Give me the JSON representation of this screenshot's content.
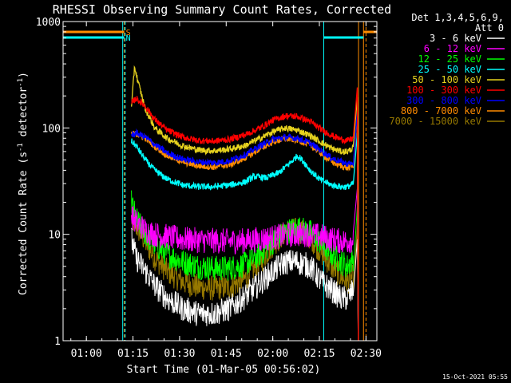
{
  "chart_data": {
    "type": "line",
    "title": "RHESSI Observing Summary Count Rates, Corrected",
    "xlabel": "Start Time (01-Mar-05 00:56:02)",
    "ylabel": "Corrected Count Rate (s⁻¹ detector⁻¹)",
    "ylabel_main": "Corrected Count Rate (s",
    "ylabel_sup1": "-1",
    "ylabel_mid": " detector",
    "ylabel_sup2": "-1",
    "ylabel_end": ")",
    "yscale": "log",
    "ylim": [
      1,
      1000
    ],
    "xlim_minutes": [
      -3.5,
      97.5
    ],
    "x_ticks": [
      {
        "label": "01:00",
        "m": 4
      },
      {
        "label": "01:15",
        "m": 19
      },
      {
        "label": "01:30",
        "m": 34
      },
      {
        "label": "01:45",
        "m": 49
      },
      {
        "label": "02:00",
        "m": 64
      },
      {
        "label": "02:15",
        "m": 79
      },
      {
        "label": "02:30",
        "m": 94
      }
    ],
    "y_ticks": [
      {
        "label": "1",
        "v": 1
      },
      {
        "label": "10",
        "v": 10
      },
      {
        "label": "100",
        "v": 100
      },
      {
        "label": "1000",
        "v": 1000
      }
    ],
    "legend_header": [
      "Det 1,3,4,5,6,9,",
      "Att 0"
    ],
    "series": [
      {
        "name": "3 - 6 keV",
        "color": "#ffffff",
        "x": [
          18.5,
          20,
          23,
          26,
          30,
          35,
          40,
          45,
          50,
          55,
          60,
          64,
          68,
          72,
          76,
          80,
          83,
          86,
          88,
          90
        ],
        "y": [
          9,
          6,
          4.5,
          3.3,
          2.5,
          2.0,
          1.8,
          1.8,
          2.0,
          2.6,
          3.5,
          4.5,
          5.5,
          5.5,
          5,
          3.5,
          3,
          2.5,
          2.5,
          3
        ]
      },
      {
        "name": "6 - 12 keV",
        "color": "#ff00ff",
        "x": [
          18.5,
          20,
          23,
          26,
          30,
          35,
          40,
          45,
          50,
          55,
          60,
          64,
          68,
          72,
          76,
          80,
          83,
          86,
          88,
          90
        ],
        "y": [
          15,
          13,
          11,
          10,
          9.5,
          9,
          8.8,
          8.7,
          8.6,
          8.7,
          9,
          9.3,
          9.8,
          10,
          10,
          9.5,
          9,
          8.6,
          8.6,
          9
        ]
      },
      {
        "name": "12 - 25 keV",
        "color": "#00ff00",
        "x": [
          18.5,
          20,
          23,
          26,
          30,
          35,
          40,
          45,
          50,
          55,
          60,
          64,
          68,
          72,
          76,
          80,
          83,
          86,
          88,
          90
        ],
        "y": [
          20,
          14,
          10,
          8,
          6.5,
          5.5,
          5,
          4.8,
          4.8,
          5.2,
          6.5,
          8.5,
          10.5,
          11.5,
          10.5,
          8,
          6.5,
          5.5,
          5,
          6
        ]
      },
      {
        "name": "25 - 50 keV",
        "color": "#00ffff",
        "x": [
          18.5,
          20,
          23,
          26,
          30,
          35,
          40,
          45,
          50,
          55,
          58,
          62,
          66,
          70,
          72,
          74,
          76,
          79,
          83,
          86,
          88,
          90
        ],
        "y": [
          75,
          68,
          50,
          40,
          33,
          29,
          28,
          28,
          29,
          31,
          35,
          34,
          38,
          48,
          55,
          48,
          40,
          33,
          29,
          28,
          28,
          30
        ]
      },
      {
        "name": "50 - 100 keV",
        "color": "#e6d21e",
        "x": [
          18.5,
          19.5,
          20.5,
          23,
          26,
          30,
          35,
          40,
          45,
          50,
          55,
          60,
          64,
          68,
          72,
          76,
          80,
          83,
          86,
          88,
          90
        ],
        "y": [
          150,
          380,
          280,
          150,
          100,
          80,
          68,
          62,
          61,
          63,
          68,
          80,
          92,
          100,
          95,
          85,
          72,
          64,
          60,
          60,
          65
        ]
      },
      {
        "name": "100 - 300 keV",
        "color": "#ff0000",
        "x": [
          18.5,
          20,
          23,
          26,
          30,
          35,
          40,
          45,
          50,
          55,
          60,
          64,
          68,
          72,
          76,
          80,
          83,
          86,
          88,
          90
        ],
        "y": [
          170,
          190,
          160,
          120,
          95,
          82,
          76,
          75,
          78,
          86,
          100,
          118,
          130,
          128,
          115,
          95,
          85,
          78,
          76,
          80
        ]
      },
      {
        "name": "300 - 800 keV",
        "color": "#0000ff",
        "x": [
          18.5,
          20,
          23,
          26,
          30,
          35,
          40,
          45,
          50,
          55,
          60,
          64,
          68,
          72,
          76,
          80,
          83,
          86,
          88,
          90
        ],
        "y": [
          85,
          90,
          82,
          70,
          58,
          51,
          48,
          47,
          49,
          56,
          68,
          78,
          82,
          80,
          72,
          60,
          52,
          48,
          46,
          47
        ]
      },
      {
        "name": "800 - 7000 keV",
        "color": "#ff8c00",
        "x": [
          18.5,
          20,
          23,
          26,
          30,
          35,
          40,
          45,
          50,
          55,
          60,
          64,
          68,
          72,
          76,
          80,
          83,
          86,
          88,
          90
        ],
        "y": [
          88,
          88,
          80,
          67,
          55,
          48,
          44,
          43,
          45,
          52,
          64,
          74,
          79,
          77,
          69,
          56,
          48,
          44,
          42,
          44
        ]
      },
      {
        "name": "7000 - 15000 keV",
        "color": "#967800",
        "x": [
          18.5,
          20,
          23,
          26,
          30,
          35,
          40,
          45,
          50,
          55,
          60,
          64,
          68,
          72,
          76,
          80,
          83,
          86,
          88,
          90
        ],
        "y": [
          14,
          12,
          8.5,
          6,
          4.5,
          3.6,
          3.2,
          3.1,
          3.2,
          3.8,
          5.5,
          8,
          10.5,
          11,
          9.5,
          6.5,
          5,
          4,
          3.6,
          4
        ]
      }
    ],
    "vertical_lines": [
      {
        "x": 15.7,
        "color": "#00ffff",
        "style": "solid"
      },
      {
        "x": 16.2,
        "color": "#ff8c00",
        "style": "dashed"
      },
      {
        "x": 16.5,
        "color": "#00ffff",
        "style": "dashed"
      },
      {
        "x": 80.4,
        "color": "#00ffff",
        "style": "solid"
      },
      {
        "x": 91.6,
        "color": "#ff8c00",
        "style": "solid"
      },
      {
        "x": 93.2,
        "color": "#ff8c00",
        "style": "solid"
      },
      {
        "x": 94.0,
        "color": "#ff8c00",
        "style": "dashed"
      }
    ],
    "bars": [
      {
        "label": "S",
        "color": "#ff8c00",
        "segments": [
          [
            -3.5,
            16.2
          ],
          [
            93.2,
            97.5
          ]
        ]
      },
      {
        "label": "N",
        "color": "#00ffff",
        "segments": [
          [
            -3.5,
            16.2
          ],
          [
            80.4,
            93.2
          ]
        ]
      }
    ],
    "timestamp": "15-Oct-2021 05:55"
  }
}
